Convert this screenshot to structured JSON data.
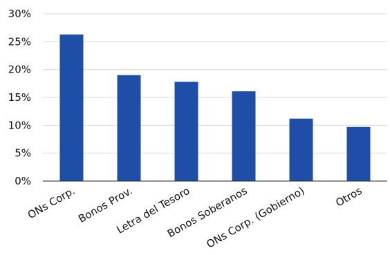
{
  "chart_data": {
    "type": "bar",
    "title": "",
    "xlabel": "",
    "ylabel": "",
    "categories": [
      "ONs Corp.",
      "Bonos Prov.",
      "Letra del Tesoro",
      "Bonos Soberanos",
      "ONs Corp. (Gobierno)",
      "Otros"
    ],
    "values": [
      26.3,
      19.0,
      17.8,
      16.1,
      11.2,
      9.7
    ],
    "ylim": [
      0,
      30
    ],
    "y_ticks": [
      0,
      5,
      10,
      15,
      20,
      25,
      30
    ],
    "y_tick_labels": [
      "0%",
      "5%",
      "10%",
      "15%",
      "20%",
      "25%",
      "30%"
    ],
    "bar_color": "#1f4ea8",
    "grid": true,
    "legend": "none"
  }
}
